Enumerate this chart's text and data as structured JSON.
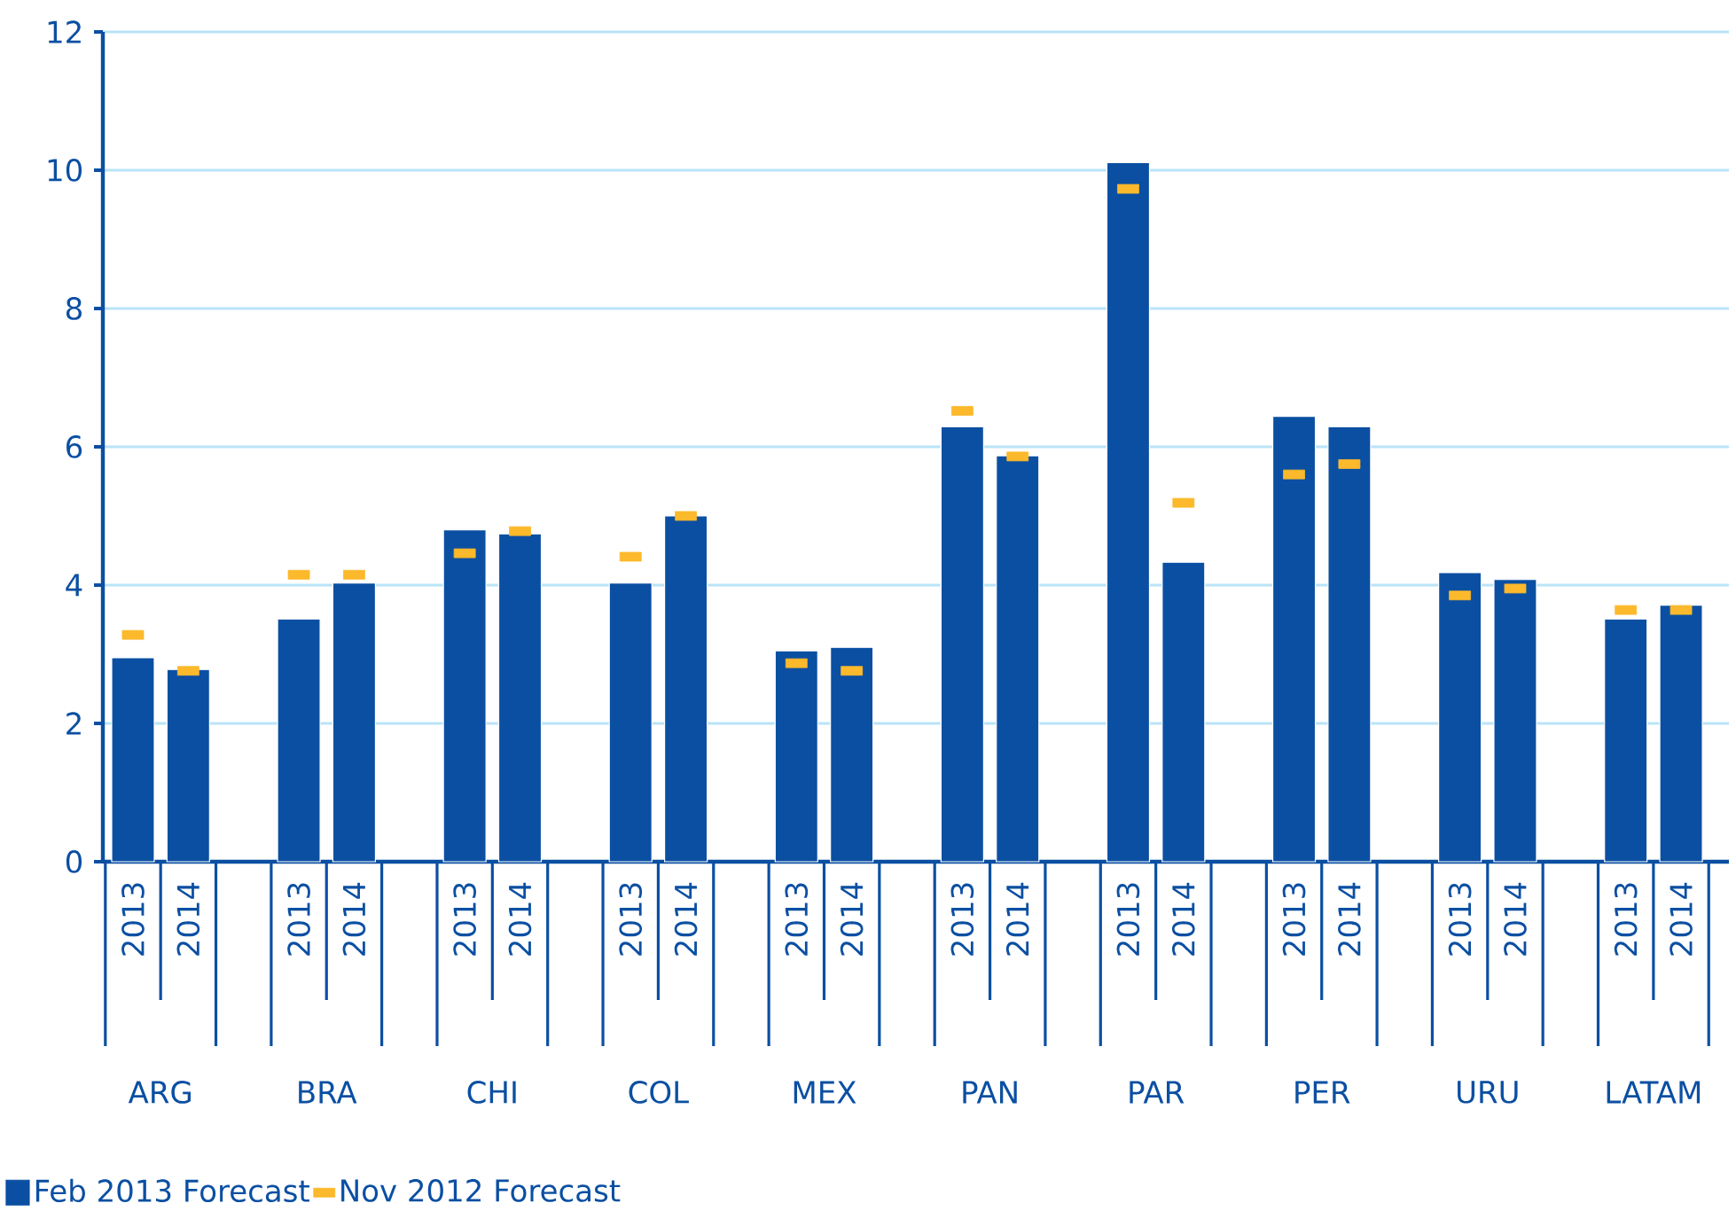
{
  "chart_data": {
    "type": "bar",
    "categories": [
      "2013",
      "2014",
      "2013",
      "2014",
      "2013",
      "2014",
      "2013",
      "2014",
      "2013",
      "2014",
      "2013",
      "2014",
      "2013",
      "2014",
      "2013",
      "2014",
      "2013",
      "2014",
      "2013",
      "2014"
    ],
    "series": [
      {
        "name": "Feb 2013 Forecast",
        "color": "#0b4fa2",
        "values": [
          2.95,
          2.78,
          3.51,
          4.03,
          4.8,
          4.74,
          4.03,
          5.0,
          3.05,
          3.1,
          6.29,
          5.87,
          10.11,
          4.33,
          6.44,
          6.29,
          4.18,
          4.08,
          3.51,
          3.71
        ]
      },
      {
        "name": "Nov 2012 Forecast",
        "type": "scatter",
        "color": "#fbb92b",
        "values": [
          3.28,
          2.76,
          4.15,
          4.15,
          4.46,
          4.78,
          4.41,
          5.0,
          2.87,
          2.76,
          6.52,
          5.86,
          9.73,
          5.19,
          5.6,
          5.75,
          3.85,
          3.95,
          3.64,
          3.64
        ]
      }
    ],
    "annotations": [
      "ARG",
      "BRA",
      "CHI",
      "COL",
      "MEX",
      "PAN",
      "PAR",
      "PER",
      "URU",
      "LATAM"
    ],
    "ylim": [
      0,
      12
    ],
    "yticks": [
      0,
      2,
      4,
      6,
      8,
      10,
      12
    ],
    "grid": "y",
    "legend": "bottom"
  }
}
